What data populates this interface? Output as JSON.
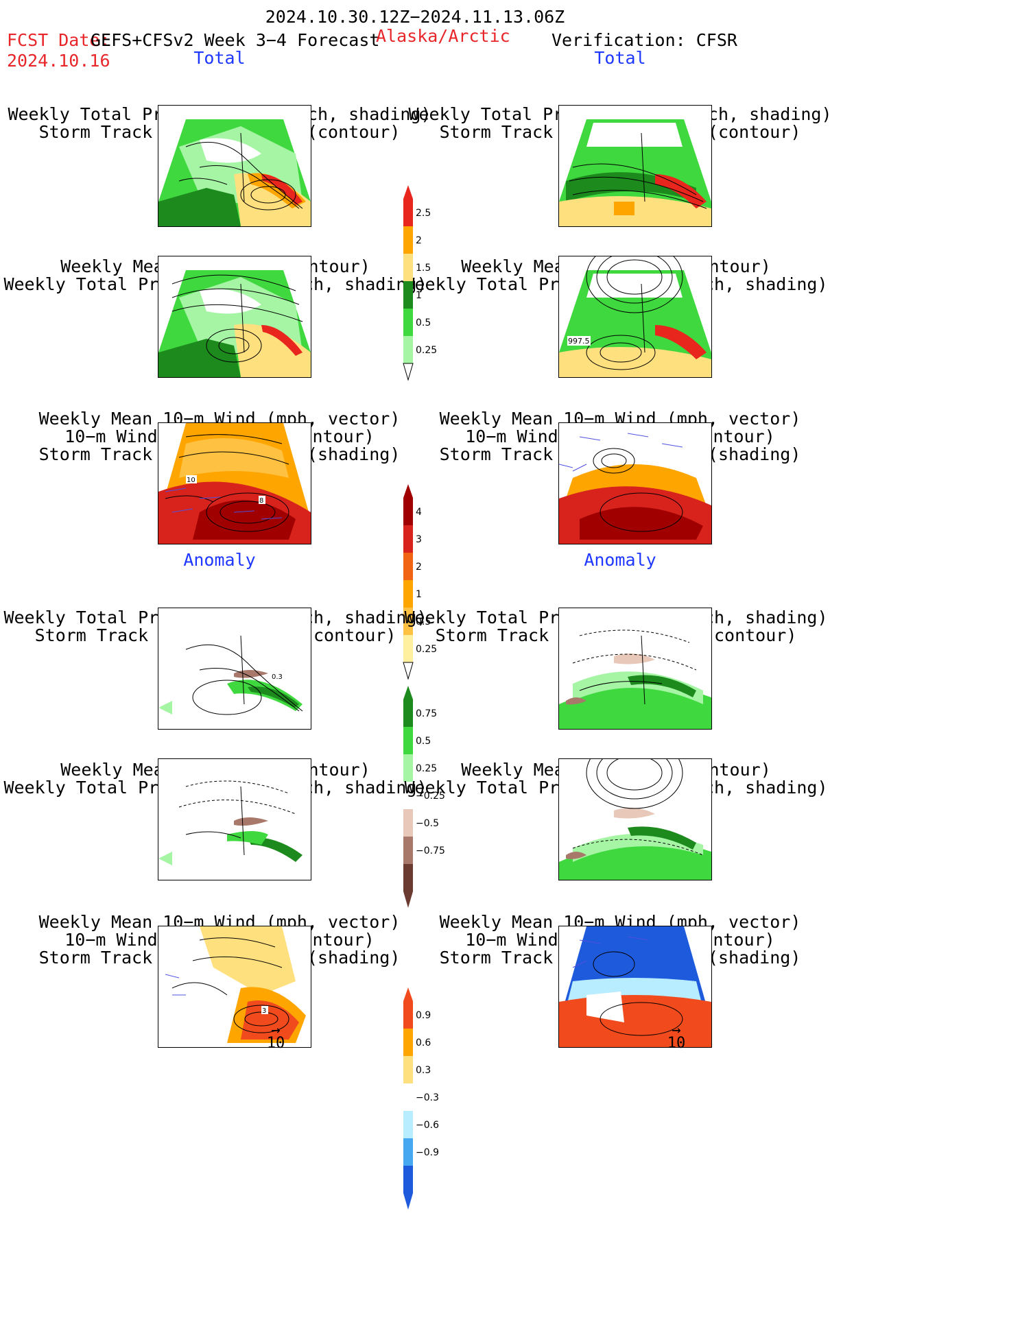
{
  "header": {
    "period": "2024.10.30.12Z−2024.11.13.06Z",
    "fcst_label": "FCST Date:",
    "fcst_date": "2024.10.16",
    "model": "GEFS+CFSv2 Week 3−4 Forecast",
    "region": "Alaska/Arctic",
    "verification": "Verification: CFSR"
  },
  "sections": {
    "total": "Total",
    "anomaly": "Anomaly"
  },
  "titles": {
    "precip_storm": [
      "Weekly Total Precip/7−day (inch, shading)",
      "Storm Track Density/7−day (contour)"
    ],
    "slp_precip": [
      "Weekly Mean SLP (hPa, contour)",
      "Weekly Total Precip/7−day (inch, shading)"
    ],
    "wind_storm": [
      "Weekly Mean 10−m Wind (mph, vector)",
      "10−m Wind Speed (mph, contour)",
      "Storm Track Density/7−day (shading)"
    ]
  },
  "map_labels": {
    "cfsr_slp_total": "997.5",
    "fcst_wind_total_a": "10",
    "fcst_wind_total_b": "8",
    "fcst_precip_anom": "0.3",
    "fcst_wind_anom": "3"
  },
  "vector_ref": "10",
  "colorbars": {
    "precip_total": {
      "labels": [
        "2.5",
        "2",
        "1.5",
        "1",
        "0.5",
        "0.25"
      ],
      "colors": [
        "#e8261d",
        "#ffa500",
        "#ffe07f",
        "#1d8a1d",
        "#3fd93f",
        "#a5f5a5"
      ]
    },
    "storm_total": {
      "labels": [
        "4",
        "3",
        "2",
        "1",
        "0.5",
        "0.25"
      ],
      "colors": [
        "#a00000",
        "#d8231d",
        "#f06414",
        "#ffa500",
        "#ffc142",
        "#fff0a0"
      ]
    },
    "precip_anom": {
      "labels": [
        "0.75",
        "0.5",
        "0.25",
        "−0.25",
        "−0.5",
        "−0.75"
      ],
      "colors": [
        "#1d8a1d",
        "#3fd93f",
        "#a5f5a5",
        "#ffffff",
        "#e8c8b8",
        "#a8786a",
        "#6b3a30"
      ]
    },
    "storm_anom": {
      "labels": [
        "0.9",
        "0.6",
        "0.3",
        "−0.3",
        "−0.6",
        "−0.9"
      ],
      "colors": [
        "#f04a1d",
        "#ffa500",
        "#ffe07f",
        "#ffffff",
        "#b8ecff",
        "#46a8f0",
        "#1e5adc"
      ]
    }
  },
  "colors": {
    "land_line": "#000000",
    "vector": "#5050e0"
  }
}
